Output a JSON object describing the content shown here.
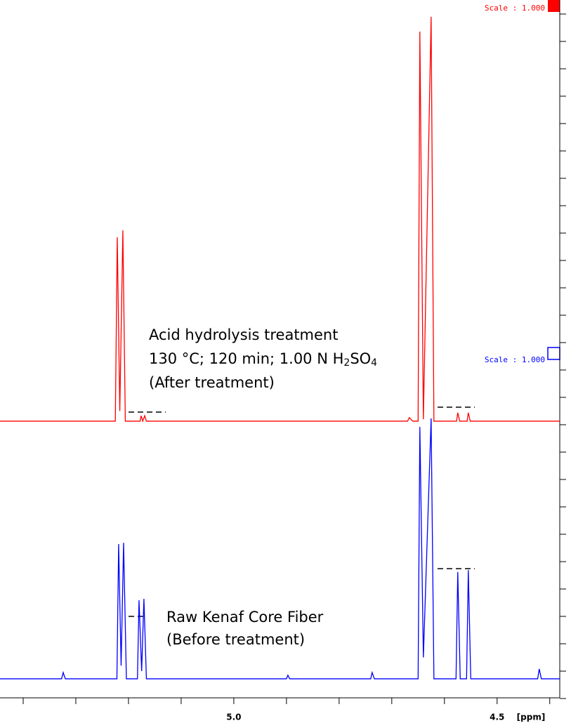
{
  "chart_data": {
    "type": "line",
    "x_label": "[ppm]",
    "xlim": [
      5.444,
      4.381
    ],
    "ylim": [
      0,
      25
    ],
    "xticks": [
      {
        "value": 5.0,
        "label": "5.0"
      },
      {
        "value": 4.5,
        "label": "4.5"
      }
    ],
    "x_minor_ticks": [
      5.4,
      5.3,
      5.2,
      5.1,
      4.9,
      4.8,
      4.7,
      4.6,
      4.4
    ],
    "yticks": [
      0,
      1,
      2,
      3,
      4,
      5,
      6,
      7,
      8,
      9,
      10,
      11,
      12,
      13,
      14,
      15,
      16,
      17,
      18,
      19,
      20,
      21,
      22,
      23,
      24,
      25
    ],
    "series": [
      {
        "color": "#ff0000",
        "x": [
          5.444,
          5.225,
          5.2213,
          5.2165,
          5.2107,
          5.206,
          5.178,
          5.176,
          5.173,
          5.1693,
          5.166,
          4.67,
          4.6667,
          4.66,
          4.65,
          4.6467,
          4.64,
          4.6253,
          4.62,
          4.577,
          4.5747,
          4.571,
          4.557,
          4.5547,
          4.551,
          4.381
        ],
        "values": [
          10.13,
          10.13,
          16.85,
          10.5,
          17.1,
          10.13,
          10.13,
          10.33,
          10.13,
          10.33,
          10.13,
          10.13,
          10.26,
          10.13,
          10.13,
          24.36,
          10.2,
          24.9,
          10.13,
          10.13,
          10.44,
          10.13,
          10.13,
          10.44,
          10.13,
          10.13
        ],
        "scale_label": "Scale : 1.000",
        "annotation": [
          "Acid hydrolysis treatment",
          [
            "130 °C; 120 min; 1.00 N H",
            "2",
            "SO",
            "4"
          ],
          "(After treatment)"
        ]
      },
      {
        "color": "#0000ff",
        "x": [
          5.444,
          5.327,
          5.324,
          5.32,
          5.222,
          5.2187,
          5.214,
          5.2093,
          5.204,
          5.183,
          5.18,
          5.175,
          5.1707,
          5.166,
          4.9,
          4.8973,
          4.894,
          4.74,
          4.7373,
          4.733,
          4.65,
          4.6467,
          4.64,
          4.6253,
          4.62,
          4.578,
          4.5747,
          4.57,
          4.558,
          4.5547,
          4.55,
          4.423,
          4.42,
          4.416,
          4.381
        ],
        "values": [
          0.72,
          0.72,
          0.95,
          0.72,
          0.72,
          5.64,
          1.2,
          5.69,
          0.72,
          0.72,
          3.59,
          1.0,
          3.64,
          0.72,
          0.72,
          0.85,
          0.72,
          0.72,
          0.95,
          0.72,
          0.72,
          9.92,
          1.5,
          10.23,
          0.72,
          0.72,
          4.62,
          0.72,
          0.72,
          4.69,
          0.72,
          0.72,
          1.08,
          0.72,
          0.72
        ],
        "scale_label": "Scale : 1.000",
        "annotation": [
          "Raw Kenaf Core Fiber",
          "(Before treatment)"
        ]
      }
    ]
  }
}
